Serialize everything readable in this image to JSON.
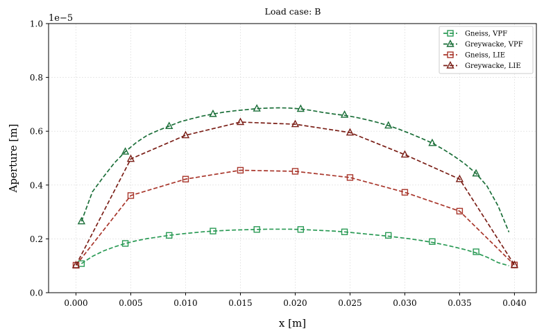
{
  "chart_data": {
    "type": "line",
    "title": "Load case: B",
    "xlabel": "x [m]",
    "ylabel": "Aperture [m]",
    "offset_label": "1e−5",
    "xlim": [
      -0.0025,
      0.042
    ],
    "ylim": [
      0.0,
      1.0
    ],
    "x_ticks": [
      0.0,
      0.005,
      0.01,
      0.015,
      0.02,
      0.025,
      0.03,
      0.035,
      0.04
    ],
    "x_tick_labels": [
      "0.000",
      "0.005",
      "0.010",
      "0.015",
      "0.020",
      "0.025",
      "0.030",
      "0.035",
      "0.040"
    ],
    "y_ticks": [
      0.0,
      0.2,
      0.4,
      0.6,
      0.8,
      1.0
    ],
    "y_tick_labels": [
      "0.0",
      "0.2",
      "0.4",
      "0.6",
      "0.8",
      "1.0"
    ],
    "grid": true,
    "legend_position": "top-right",
    "series": [
      {
        "name": "Gneiss, VPF",
        "color": "#2a9a55",
        "marker": "square",
        "x": [
          0.0005,
          0.0015,
          0.0025,
          0.0035,
          0.0045,
          0.0055,
          0.0065,
          0.0075,
          0.0085,
          0.0095,
          0.0105,
          0.0115,
          0.0125,
          0.0135,
          0.0145,
          0.0155,
          0.0165,
          0.0175,
          0.0185,
          0.0195,
          0.0205,
          0.0215,
          0.0225,
          0.0235,
          0.0245,
          0.0255,
          0.0265,
          0.0275,
          0.0285,
          0.0295,
          0.0305,
          0.0315,
          0.0325,
          0.0335,
          0.0345,
          0.0355,
          0.0365,
          0.0375,
          0.0385,
          0.0395
        ],
        "values": [
          0.108,
          0.135,
          0.155,
          0.17,
          0.183,
          0.193,
          0.201,
          0.207,
          0.213,
          0.218,
          0.222,
          0.226,
          0.229,
          0.231,
          0.233,
          0.234,
          0.235,
          0.236,
          0.236,
          0.236,
          0.235,
          0.233,
          0.231,
          0.229,
          0.226,
          0.222,
          0.218,
          0.214,
          0.21,
          0.205,
          0.2,
          0.194,
          0.187,
          0.179,
          0.17,
          0.16,
          0.148,
          0.132,
          0.112,
          0.1
        ],
        "marker_x": [
          0.0005,
          0.0045,
          0.0085,
          0.0125,
          0.0165,
          0.0205,
          0.0245,
          0.0285,
          0.0325,
          0.0365
        ],
        "marker_values": [
          0.108,
          0.183,
          0.213,
          0.229,
          0.235,
          0.235,
          0.226,
          0.213,
          0.19,
          0.152
        ]
      },
      {
        "name": "Greywacke, VPF",
        "color": "#1a6e38",
        "marker": "triangle",
        "x": [
          0.0005,
          0.0015,
          0.0025,
          0.0035,
          0.0045,
          0.0055,
          0.0065,
          0.0075,
          0.0085,
          0.0095,
          0.0105,
          0.0115,
          0.0125,
          0.0135,
          0.0145,
          0.0155,
          0.0165,
          0.0175,
          0.0185,
          0.0195,
          0.0205,
          0.0215,
          0.0225,
          0.0235,
          0.0245,
          0.0255,
          0.0265,
          0.0275,
          0.0285,
          0.0295,
          0.0305,
          0.0315,
          0.0325,
          0.0335,
          0.0345,
          0.0355,
          0.0365,
          0.0375,
          0.0385,
          0.0395
        ],
        "values": [
          0.265,
          0.375,
          0.43,
          0.482,
          0.524,
          0.558,
          0.585,
          0.603,
          0.619,
          0.635,
          0.646,
          0.656,
          0.664,
          0.671,
          0.676,
          0.68,
          0.684,
          0.686,
          0.687,
          0.686,
          0.683,
          0.677,
          0.67,
          0.664,
          0.659,
          0.652,
          0.643,
          0.633,
          0.621,
          0.607,
          0.591,
          0.574,
          0.556,
          0.533,
          0.507,
          0.478,
          0.443,
          0.396,
          0.323,
          0.225
        ],
        "marker_x": [
          0.0005,
          0.0045,
          0.0085,
          0.0125,
          0.0165,
          0.0205,
          0.0245,
          0.0285,
          0.0325,
          0.0365
        ],
        "marker_values": [
          0.265,
          0.524,
          0.619,
          0.664,
          0.684,
          0.683,
          0.661,
          0.621,
          0.556,
          0.443
        ]
      },
      {
        "name": "Gneiss, LIE",
        "color": "#a8352a",
        "marker": "square",
        "x": [
          0.0,
          0.005,
          0.01,
          0.015,
          0.02,
          0.025,
          0.03,
          0.035,
          0.04
        ],
        "values": [
          0.102,
          0.361,
          0.422,
          0.455,
          0.451,
          0.428,
          0.373,
          0.303,
          0.103
        ],
        "marker_x": [
          0.0,
          0.005,
          0.01,
          0.015,
          0.02,
          0.025,
          0.03,
          0.035,
          0.04
        ],
        "marker_values": [
          0.102,
          0.361,
          0.422,
          0.455,
          0.451,
          0.428,
          0.373,
          0.303,
          0.103
        ]
      },
      {
        "name": "Greywacke, LIE",
        "color": "#7a1e16",
        "marker": "triangle",
        "x": [
          0.0,
          0.005,
          0.01,
          0.015,
          0.02,
          0.025,
          0.03,
          0.035,
          0.04
        ],
        "values": [
          0.102,
          0.497,
          0.585,
          0.634,
          0.626,
          0.595,
          0.513,
          0.422,
          0.103
        ],
        "marker_x": [
          0.0,
          0.005,
          0.01,
          0.015,
          0.02,
          0.025,
          0.03,
          0.035,
          0.04
        ],
        "marker_values": [
          0.102,
          0.497,
          0.585,
          0.634,
          0.626,
          0.595,
          0.513,
          0.422,
          0.103
        ]
      }
    ]
  }
}
